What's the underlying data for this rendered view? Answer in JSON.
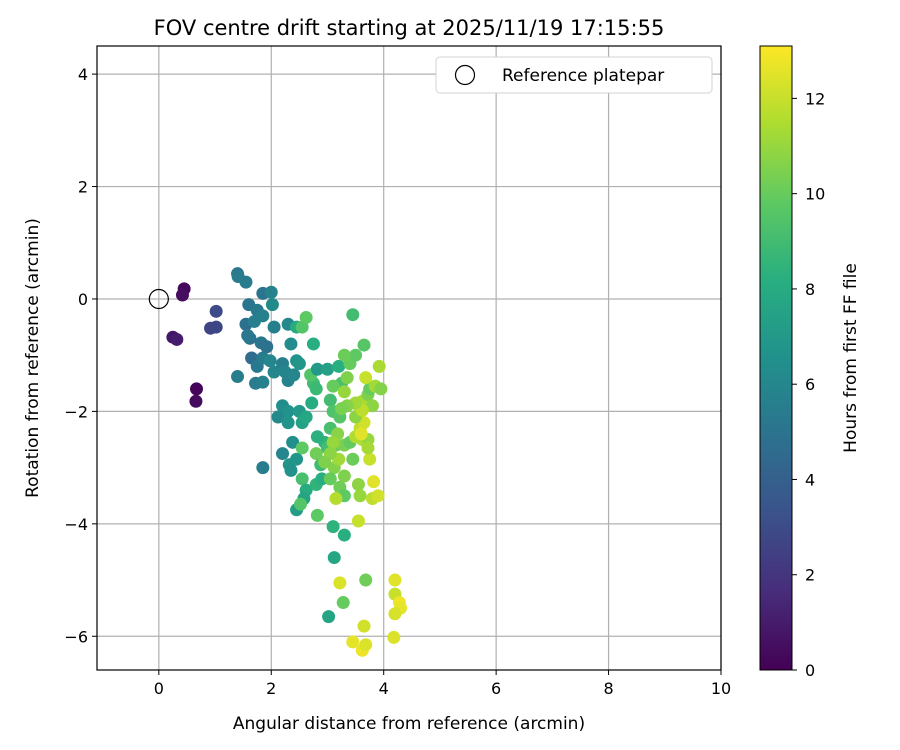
{
  "chart_data": {
    "type": "scatter",
    "title": "FOV centre drift starting at 2025/11/19 17:15:55",
    "xlabel": "Angular distance from reference (arcmin)",
    "ylabel": "Rotation from reference (arcmin)",
    "xlim": [
      -1.1,
      10
    ],
    "ylim": [
      -6.6,
      4.5
    ],
    "xticks": [
      0,
      2,
      4,
      6,
      8,
      10
    ],
    "yticks": [
      -6,
      -4,
      -2,
      0,
      2,
      4
    ],
    "grid": true,
    "legend": {
      "position": "top-right",
      "entries": [
        "Reference platepar"
      ]
    },
    "reference_point": {
      "x": 0,
      "y": 0,
      "label": "Reference platepar"
    },
    "colorbar": {
      "label": "Hours from first FF file",
      "min": 0,
      "max": 13.1,
      "ticks": [
        0,
        2,
        4,
        6,
        8,
        10,
        12
      ]
    },
    "series": [
      {
        "name": "FOV centre",
        "points": [
          [
            0.45,
            0.18,
            0.3
          ],
          [
            0.42,
            0.07,
            0.5
          ],
          [
            0.25,
            -0.68,
            0.8
          ],
          [
            0.32,
            -0.72,
            1.0
          ],
          [
            0.67,
            -1.6,
            0.2
          ],
          [
            0.66,
            -1.82,
            0.4
          ],
          [
            0.92,
            -0.52,
            2.6
          ],
          [
            1.02,
            -0.22,
            3.0
          ],
          [
            1.02,
            -0.5,
            2.8
          ],
          [
            1.4,
            0.45,
            5.2
          ],
          [
            1.41,
            0.4,
            5.4
          ],
          [
            1.55,
            0.3,
            5.5
          ],
          [
            1.6,
            -0.1,
            5.1
          ],
          [
            1.75,
            -0.2,
            5.3
          ],
          [
            1.85,
            0.1,
            5.0
          ],
          [
            2.0,
            0.12,
            5.8
          ],
          [
            1.55,
            -0.45,
            4.8
          ],
          [
            1.62,
            -0.7,
            5.0
          ],
          [
            1.7,
            -0.4,
            5.6
          ],
          [
            1.85,
            -0.3,
            5.7
          ],
          [
            2.02,
            -0.1,
            6.2
          ],
          [
            2.05,
            -0.5,
            5.6
          ],
          [
            1.58,
            -0.65,
            5.2
          ],
          [
            1.82,
            -0.78,
            5.1
          ],
          [
            1.92,
            -0.85,
            4.9
          ],
          [
            1.65,
            -1.05,
            4.6
          ],
          [
            1.75,
            -1.2,
            5.3
          ],
          [
            1.85,
            -1.05,
            5.5
          ],
          [
            1.98,
            -1.1,
            6.0
          ],
          [
            2.05,
            -1.3,
            5.9
          ],
          [
            2.2,
            -1.15,
            5.6
          ],
          [
            2.25,
            -1.3,
            5.9
          ],
          [
            2.3,
            -1.45,
            5.8
          ],
          [
            2.4,
            -1.35,
            6.0
          ],
          [
            2.45,
            -1.1,
            6.6
          ],
          [
            2.5,
            -1.15,
            6.9
          ],
          [
            2.35,
            -0.8,
            6.3
          ],
          [
            2.3,
            -0.45,
            6.1
          ],
          [
            2.45,
            -0.5,
            8.0
          ],
          [
            2.55,
            -0.5,
            9.5
          ],
          [
            2.62,
            -0.33,
            9.8
          ],
          [
            2.75,
            -0.8,
            8.2
          ],
          [
            1.72,
            -1.5,
            5.4
          ],
          [
            1.85,
            -1.48,
            5.7
          ],
          [
            1.4,
            -1.38,
            5.5
          ],
          [
            2.2,
            -1.9,
            6.4
          ],
          [
            2.3,
            -2.0,
            6.6
          ],
          [
            2.12,
            -2.1,
            6.2
          ],
          [
            2.3,
            -2.2,
            6.8
          ],
          [
            2.5,
            -2.0,
            7.0
          ],
          [
            2.55,
            -2.2,
            7.5
          ],
          [
            2.62,
            -2.1,
            7.8
          ],
          [
            2.72,
            -1.85,
            8.0
          ],
          [
            2.75,
            -1.5,
            9.0
          ],
          [
            2.8,
            -1.6,
            8.8
          ],
          [
            2.7,
            -1.35,
            9.5
          ],
          [
            2.82,
            -1.25,
            7.0
          ],
          [
            3.0,
            -1.25,
            7.4
          ],
          [
            3.2,
            -1.2,
            8.2
          ],
          [
            3.25,
            -1.5,
            9.2
          ],
          [
            3.05,
            -1.8,
            9.0
          ],
          [
            3.1,
            -1.55,
            10.0
          ],
          [
            3.35,
            -1.4,
            10.5
          ],
          [
            3.4,
            -1.15,
            10.0
          ],
          [
            3.5,
            -1.0,
            9.8
          ],
          [
            3.65,
            -0.82,
            9.6
          ],
          [
            3.45,
            -0.28,
            9.0
          ],
          [
            3.3,
            -1.0,
            10.1
          ],
          [
            2.38,
            -2.55,
            6.5
          ],
          [
            2.45,
            -2.85,
            6.7
          ],
          [
            2.32,
            -2.95,
            6.8
          ],
          [
            2.35,
            -3.05,
            6.6
          ],
          [
            2.2,
            -2.75,
            6.0
          ],
          [
            1.85,
            -3.0,
            5.5
          ],
          [
            2.55,
            -2.65,
            9.8
          ],
          [
            2.55,
            -3.2,
            9.2
          ],
          [
            2.62,
            -3.4,
            8.0
          ],
          [
            2.58,
            -3.55,
            7.6
          ],
          [
            2.45,
            -3.75,
            7.2
          ],
          [
            2.52,
            -3.65,
            9.5
          ],
          [
            2.82,
            -3.85,
            9.8
          ],
          [
            2.8,
            -3.3,
            8.5
          ],
          [
            2.9,
            -3.2,
            8.2
          ],
          [
            2.95,
            -2.55,
            8.5
          ],
          [
            2.82,
            -2.45,
            8.3
          ],
          [
            2.88,
            -2.95,
            8.9
          ],
          [
            3.0,
            -2.65,
            9.0
          ],
          [
            3.05,
            -2.3,
            9.2
          ],
          [
            3.1,
            -2.0,
            9.4
          ],
          [
            3.22,
            -2.1,
            9.6
          ],
          [
            3.15,
            -2.6,
            10.2
          ],
          [
            3.3,
            -2.6,
            10.4
          ],
          [
            3.4,
            -2.55,
            9.9
          ],
          [
            3.45,
            -2.85,
            10.1
          ],
          [
            3.3,
            -3.15,
            10.5
          ],
          [
            3.12,
            -3.0,
            10.6
          ],
          [
            3.05,
            -3.2,
            10.0
          ],
          [
            3.22,
            -3.35,
            10.2
          ],
          [
            3.55,
            -3.3,
            10.8
          ],
          [
            3.58,
            -3.5,
            11.0
          ],
          [
            3.3,
            -3.5,
            9.8
          ],
          [
            3.15,
            -3.55,
            11.6
          ],
          [
            3.1,
            -4.05,
            8.4
          ],
          [
            3.3,
            -4.2,
            8.2
          ],
          [
            3.12,
            -4.6,
            7.8
          ],
          [
            3.02,
            -5.65,
            7.6
          ],
          [
            3.28,
            -5.4,
            10.0
          ],
          [
            3.68,
            -5.0,
            10.2
          ],
          [
            3.22,
            -5.05,
            12.4
          ],
          [
            3.45,
            -6.1,
            12.6
          ],
          [
            3.62,
            -6.25,
            12.8
          ],
          [
            3.68,
            -6.15,
            12.4
          ],
          [
            3.65,
            -5.82,
            12.2
          ],
          [
            4.2,
            -5.0,
            12.5
          ],
          [
            4.2,
            -5.25,
            12.0
          ],
          [
            4.28,
            -5.4,
            12.8
          ],
          [
            4.3,
            -5.5,
            12.6
          ],
          [
            4.2,
            -5.6,
            12.3
          ],
          [
            4.18,
            -6.02,
            12.4
          ],
          [
            3.55,
            -3.95,
            12.0
          ],
          [
            3.8,
            -3.55,
            11.8
          ],
          [
            3.9,
            -3.5,
            12.2
          ],
          [
            3.82,
            -3.25,
            12.5
          ],
          [
            3.75,
            -2.85,
            12.0
          ],
          [
            3.62,
            -2.5,
            11.5
          ],
          [
            3.72,
            -2.5,
            11.0
          ],
          [
            3.72,
            -2.65,
            11.3
          ],
          [
            3.5,
            -2.45,
            11.5
          ],
          [
            3.58,
            -2.3,
            11.8
          ],
          [
            3.65,
            -2.2,
            12.2
          ],
          [
            3.6,
            -2.4,
            12.5
          ],
          [
            3.5,
            -2.1,
            10.8
          ],
          [
            3.55,
            -1.9,
            11.6
          ],
          [
            3.62,
            -1.82,
            11.4
          ],
          [
            3.72,
            -1.7,
            10.5
          ],
          [
            3.8,
            -1.9,
            10.8
          ],
          [
            3.75,
            -1.6,
            10.0
          ],
          [
            3.68,
            -1.4,
            12.0
          ],
          [
            3.85,
            -1.55,
            11.2
          ],
          [
            3.95,
            -1.6,
            10.6
          ],
          [
            3.92,
            -1.2,
            11.4
          ],
          [
            3.62,
            -1.98,
            11.8
          ],
          [
            3.5,
            -1.85,
            11.2
          ],
          [
            3.35,
            -1.9,
            10.6
          ],
          [
            3.3,
            -1.65,
            11.0
          ],
          [
            3.25,
            -1.95,
            10.4
          ],
          [
            3.18,
            -2.4,
            10.7
          ],
          [
            3.1,
            -2.55,
            11.0
          ],
          [
            3.2,
            -2.85,
            11.2
          ],
          [
            3.05,
            -2.75,
            10.8
          ],
          [
            2.95,
            -2.9,
            10.5
          ],
          [
            2.8,
            -2.75,
            10.2
          ]
        ]
      }
    ]
  }
}
